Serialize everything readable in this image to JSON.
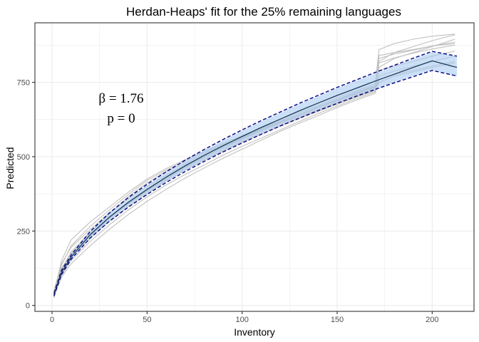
{
  "chart_data": {
    "type": "line",
    "title": "Herdan-Heaps' fit for the 25% remaining languages",
    "xlabel": "Inventory",
    "ylabel": "Predicted",
    "xlim": [
      -9,
      222
    ],
    "ylim": [
      -20,
      950
    ],
    "x_ticks": [
      0,
      50,
      100,
      150,
      200
    ],
    "y_ticks": [
      0,
      250,
      500,
      750
    ],
    "x_tick_labels": [
      "0",
      "50",
      "100",
      "150",
      "200"
    ],
    "y_tick_labels": [
      "0",
      "250",
      "500",
      "750"
    ],
    "grid": true,
    "annotations": [
      "β = 1.76",
      "p = 0"
    ],
    "fit": {
      "color": "#1f3b57",
      "x": [
        1,
        5,
        10,
        20,
        30,
        40,
        50,
        60,
        70,
        80,
        90,
        100,
        110,
        120,
        130,
        140,
        150,
        160,
        170,
        180,
        190,
        200,
        213
      ],
      "values": [
        36,
        111,
        162,
        237,
        296,
        346,
        390,
        431,
        469,
        504,
        537,
        568,
        598,
        626,
        654,
        680,
        706,
        730,
        754,
        777,
        800,
        822,
        800
      ],
      "band_lower": [
        30,
        104,
        154,
        227,
        284,
        333,
        376,
        416,
        453,
        487,
        519,
        549,
        578,
        606,
        632,
        658,
        682,
        706,
        728,
        750,
        771,
        792,
        770
      ],
      "band_upper": [
        42,
        118,
        170,
        247,
        308,
        359,
        404,
        446,
        485,
        521,
        555,
        587,
        618,
        647,
        676,
        703,
        730,
        755,
        780,
        804,
        828,
        851,
        838
      ]
    },
    "bounds": {
      "color": "#000080",
      "lower": [
        31,
        104,
        155,
        226,
        282,
        330,
        373,
        413,
        450,
        484,
        516,
        546,
        575,
        603,
        629,
        655,
        679,
        703,
        726,
        748,
        769,
        790,
        771
      ],
      "upper": [
        41,
        118,
        169,
        248,
        310,
        362,
        407,
        449,
        488,
        524,
        558,
        590,
        621,
        650,
        679,
        706,
        733,
        758,
        783,
        807,
        831,
        854,
        838
      ]
    },
    "samples": {
      "color": "#c0c0c0",
      "x": [
        1,
        5,
        10,
        20,
        30,
        40,
        50,
        60,
        70,
        80,
        90,
        100,
        110,
        120,
        130,
        140,
        150,
        160,
        170,
        172,
        180,
        190,
        200,
        212
      ],
      "series": [
        [
          25,
          120,
          180,
          245,
          305,
          365,
          412,
          450,
          478,
          510,
          540,
          566,
          595,
          618,
          640,
          665,
          690,
          712,
          735,
          820,
          850,
          870,
          890,
          910
        ],
        [
          30,
          135,
          200,
          265,
          320,
          372,
          420,
          455,
          485,
          515,
          540,
          565,
          592,
          615,
          642,
          668,
          692,
          718,
          740,
          860,
          880,
          895,
          905,
          912
        ],
        [
          40,
          150,
          220,
          280,
          330,
          380,
          425,
          460,
          490,
          518,
          545,
          570,
          596,
          620,
          648,
          672,
          698,
          722,
          745,
          800,
          830,
          850,
          870,
          895
        ],
        [
          35,
          100,
          150,
          215,
          270,
          320,
          365,
          405,
          440,
          472,
          505,
          535,
          562,
          590,
          618,
          645,
          670,
          695,
          718,
          750,
          770,
          785,
          800,
          815
        ],
        [
          30,
          95,
          140,
          200,
          255,
          305,
          350,
          390,
          428,
          462,
          495,
          525,
          555,
          585,
          612,
          638,
          665,
          690,
          713,
          760,
          775,
          790,
          805,
          820
        ],
        [
          45,
          125,
          175,
          240,
          295,
          345,
          388,
          428,
          465,
          500,
          532,
          560,
          588,
          614,
          640,
          665,
          688,
          710,
          732,
          830,
          845,
          858,
          872,
          885
        ],
        [
          38,
          110,
          165,
          232,
          290,
          342,
          386,
          425,
          462,
          496,
          528,
          558,
          586,
          612,
          636,
          660,
          684,
          706,
          728,
          840,
          850,
          860,
          872,
          880
        ],
        [
          28,
          105,
          158,
          225,
          282,
          332,
          375,
          418,
          456,
          490,
          522,
          552,
          580,
          606,
          632,
          656,
          680,
          702,
          724,
          790,
          805,
          820,
          838,
          855
        ],
        [
          50,
          140,
          195,
          255,
          310,
          358,
          400,
          438,
          472,
          505,
          535,
          562,
          590,
          616,
          642,
          668,
          692,
          715,
          737,
          815,
          832,
          848,
          862,
          875
        ],
        [
          33,
          115,
          170,
          238,
          292,
          340,
          382,
          420,
          455,
          488,
          518,
          548,
          576,
          602,
          628,
          652,
          676,
          700,
          722,
          770,
          788,
          804,
          820,
          838
        ]
      ]
    }
  }
}
